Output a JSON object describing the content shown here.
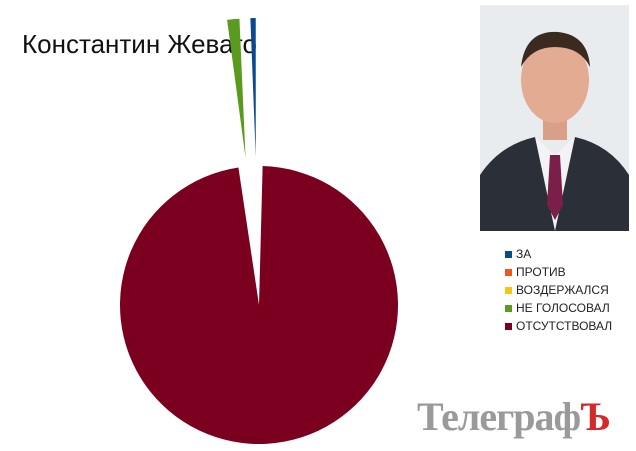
{
  "chart_data": {
    "type": "pie",
    "title": "Константин Жеваго",
    "exploded": [
      "ЗА",
      "НЕ ГОЛОСОВАЛ"
    ],
    "legend_position": "right",
    "series": [
      {
        "name": "ЗА",
        "value": 0.7,
        "color": "#0a4a8c"
      },
      {
        "name": "ПРОТИВ",
        "value": 0,
        "color": "#f0561e"
      },
      {
        "name": "ВОЗДЕРЖАЛСЯ",
        "value": 0,
        "color": "#f5c518"
      },
      {
        "name": "НЕ ГОЛОСОВАЛ",
        "value": 1.5,
        "color": "#5a9a1e"
      },
      {
        "name": "ОТСУТСТВОВАЛ",
        "value": 97.8,
        "color": "#7b0020"
      }
    ]
  },
  "watermark": {
    "main": "Телеграф",
    "last": "Ъ"
  }
}
